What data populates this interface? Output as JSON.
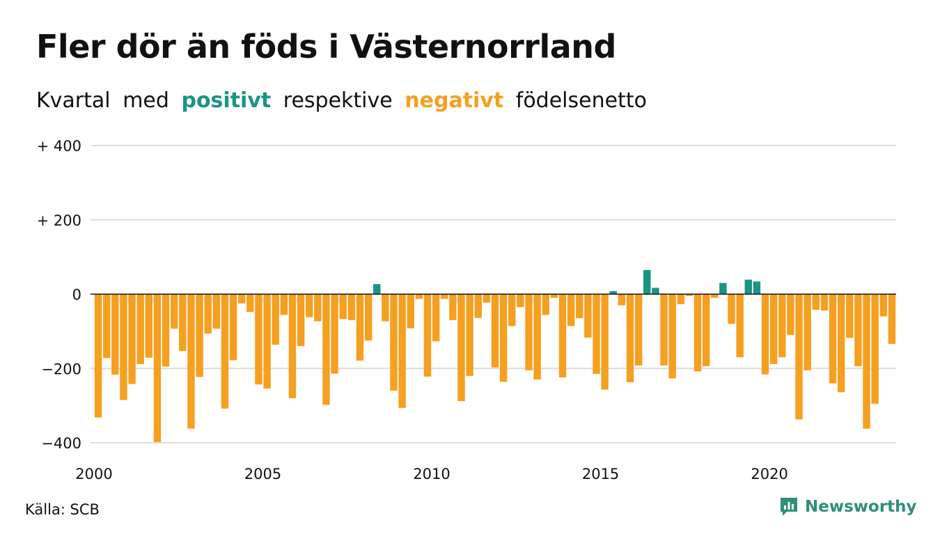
{
  "title": "Fler dör än föds i Västernorrland",
  "subtitle": {
    "p1": "Kvartal",
    "p2": "med",
    "positive": "positivt",
    "p3": "respektive",
    "negative": "negativt",
    "p4": "födelsenetto"
  },
  "source": "Källa: SCB",
  "brand": {
    "name": "Newsworthy",
    "icon": "newsworthy-logo-icon",
    "color": "#2f8f79"
  },
  "colors": {
    "positive": "#1a9484",
    "negative": "#f5a020",
    "grid": "#dddddd",
    "zero": "#111111"
  },
  "chart_data": {
    "type": "bar",
    "title": "Fler dör än föds i Västernorrland",
    "xlabel": "",
    "ylabel": "",
    "ylim": [
      -400,
      400
    ],
    "y_ticks": [
      400,
      200,
      0,
      -200,
      -400
    ],
    "y_tick_labels": [
      "+ 400",
      "+ 200",
      "0",
      "−200",
      "−400"
    ],
    "x_ticks": [
      2000,
      2005,
      2010,
      2015,
      2020
    ],
    "x_tick_labels": [
      "2000",
      "2005",
      "2010",
      "2015",
      "2020"
    ],
    "x_unit": "quarter",
    "start_year": 2000,
    "start_quarter": 1,
    "grid": true,
    "legend": "none",
    "values": [
      -332,
      -172,
      -217,
      -285,
      -242,
      -188,
      -171,
      -398,
      -195,
      -93,
      -153,
      -362,
      -223,
      -106,
      -93,
      -308,
      -178,
      -25,
      -48,
      -243,
      -254,
      -136,
      -56,
      -280,
      -140,
      -62,
      -73,
      -298,
      -214,
      -67,
      -70,
      -179,
      -125,
      27,
      -73,
      -260,
      -306,
      -92,
      -13,
      -222,
      -127,
      -13,
      -70,
      -288,
      -220,
      -64,
      -23,
      -197,
      -236,
      -86,
      -35,
      -205,
      -230,
      -56,
      -10,
      -224,
      -86,
      -65,
      -117,
      -215,
      -257,
      8,
      -30,
      -237,
      -192,
      65,
      17,
      -192,
      -227,
      -27,
      -5,
      -208,
      -194,
      -10,
      30,
      -80,
      -170,
      39,
      34,
      -216,
      -188,
      -170,
      -110,
      -337,
      -205,
      -42,
      -44,
      -240,
      -264,
      -118,
      -194,
      -362,
      -295,
      -60,
      -134
    ]
  }
}
